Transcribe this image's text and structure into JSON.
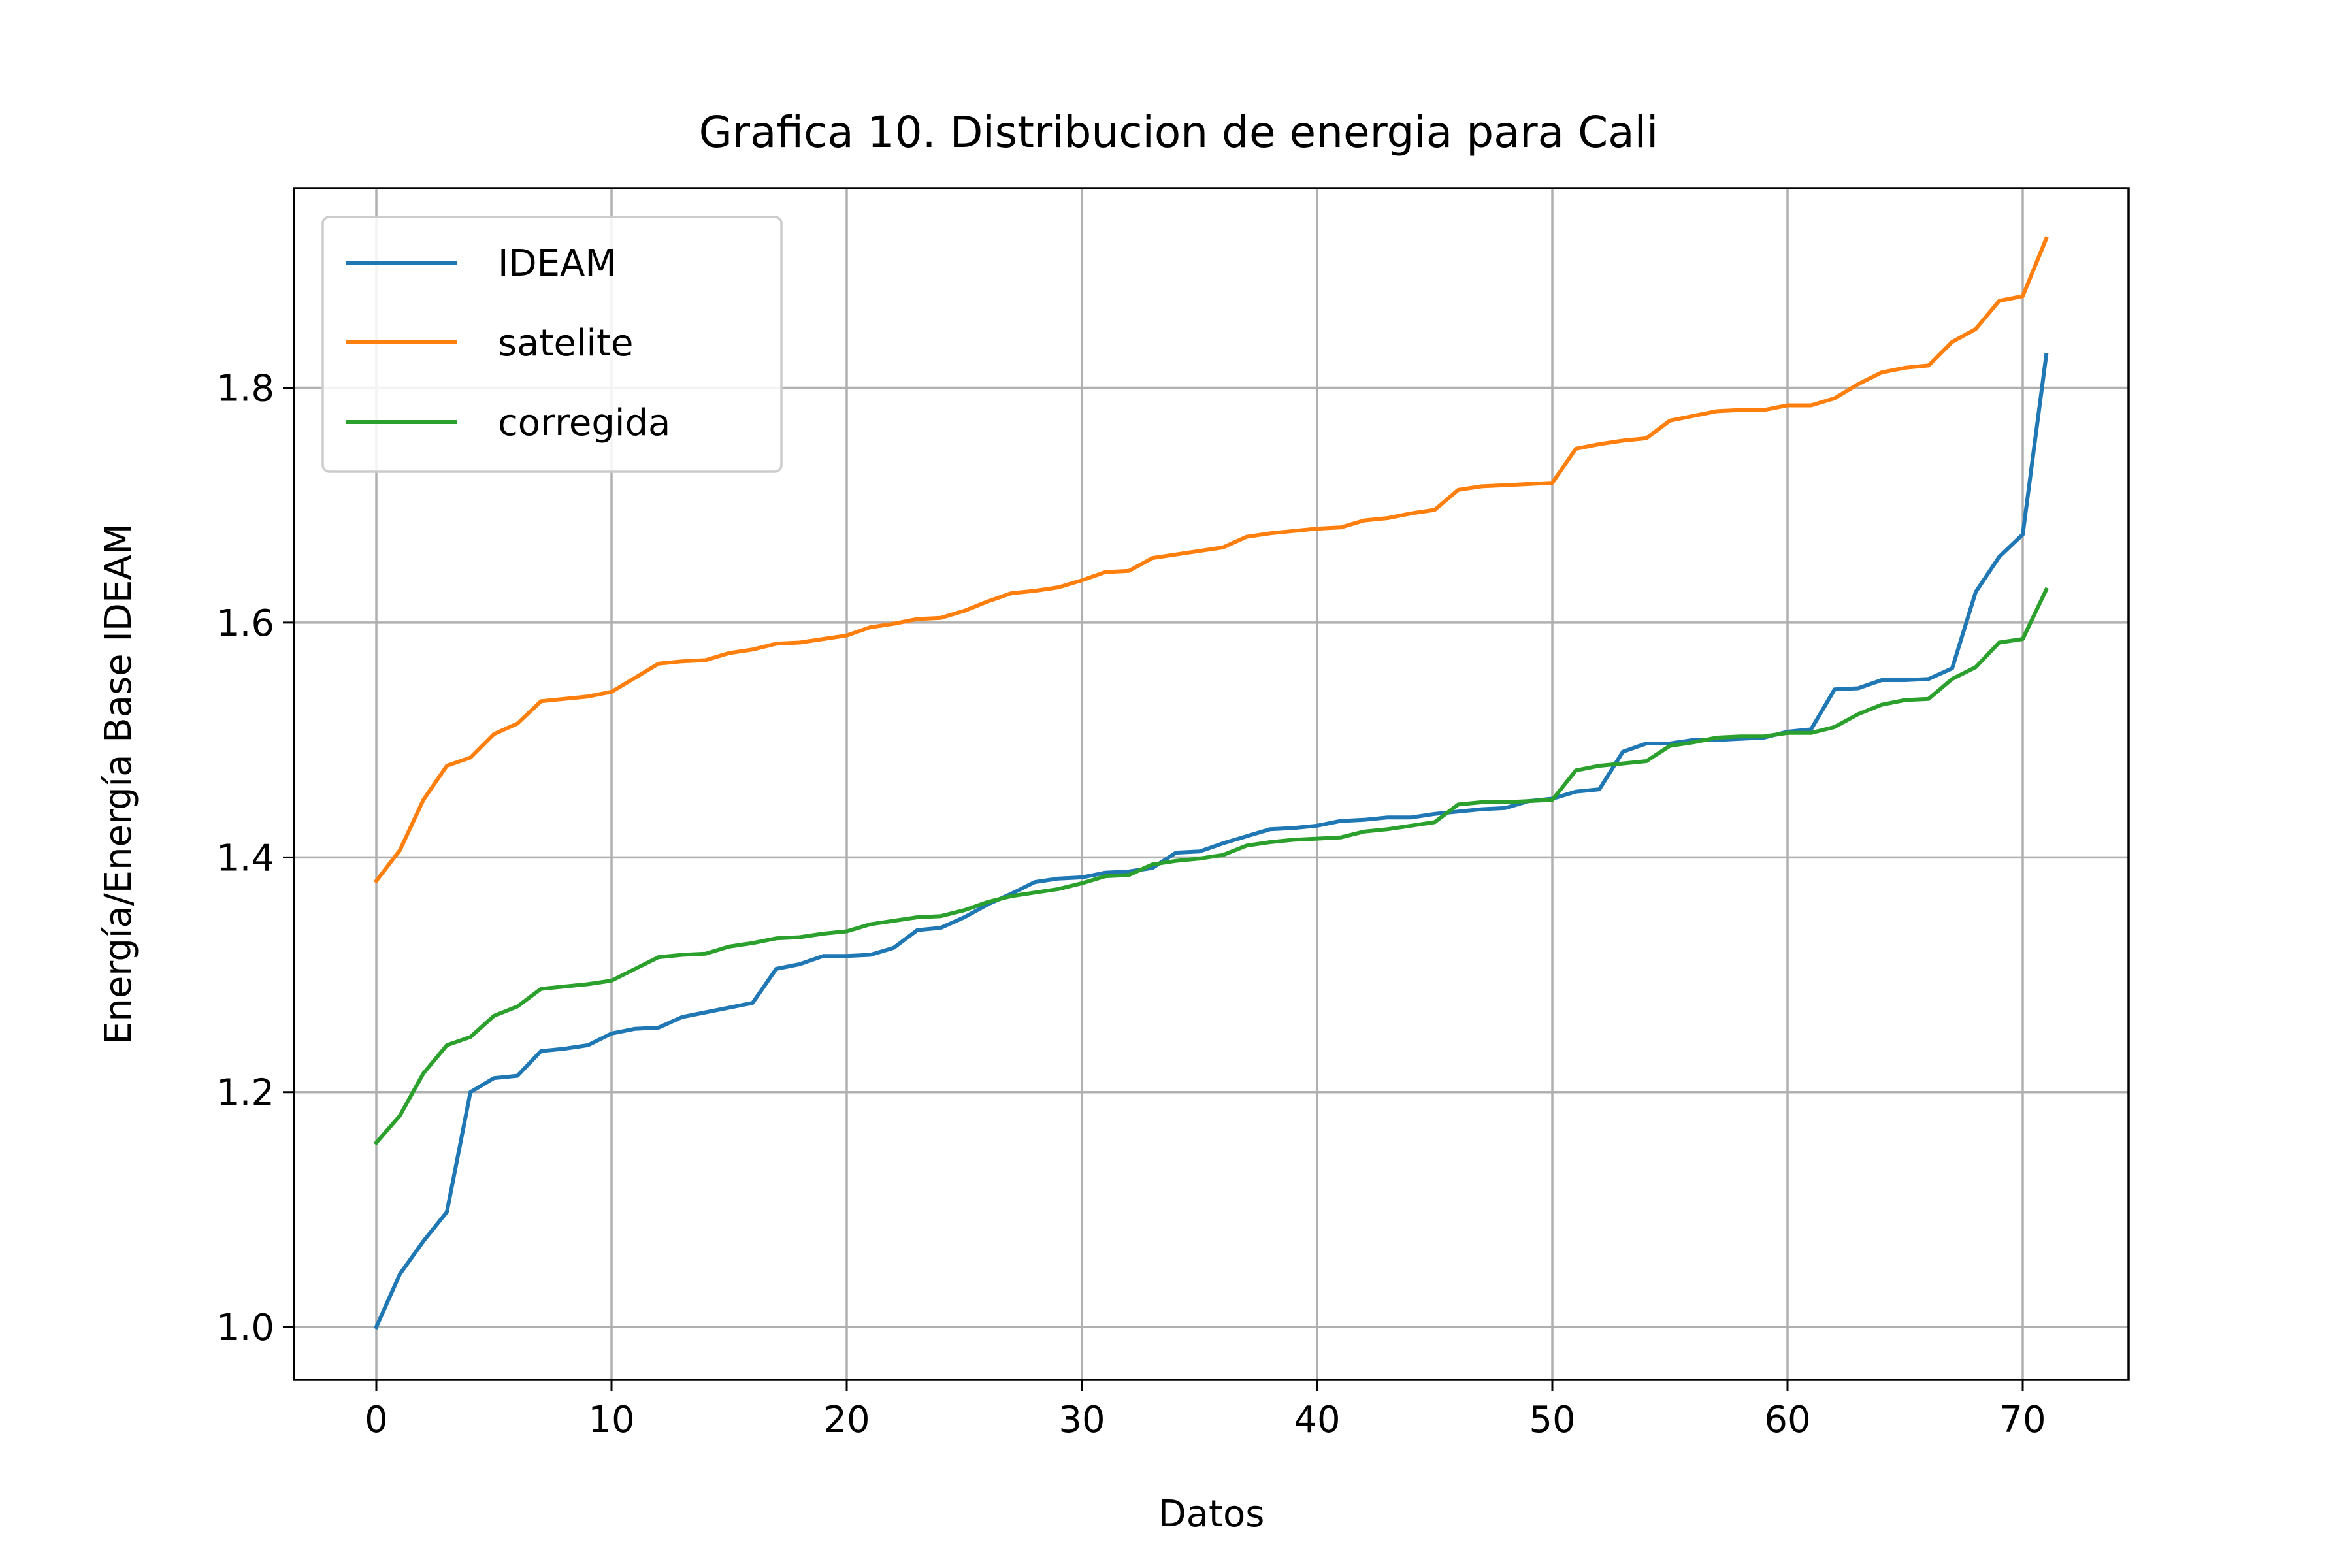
{
  "chart_data": {
    "type": "line",
    "title": "Grafica 10. Distribucion de energia para Cali",
    "xlabel": "Datos",
    "ylabel": "Energía/Energía Base IDEAM",
    "xlim": [
      -3.5,
      74.5
    ],
    "ylim": [
      0.955,
      1.97
    ],
    "xticks": [
      0,
      10,
      20,
      30,
      40,
      50,
      60,
      70
    ],
    "xtick_labels": [
      "0",
      "10",
      "20",
      "30",
      "40",
      "50",
      "60",
      "70"
    ],
    "yticks": [
      1.0,
      1.2,
      1.4,
      1.6,
      1.8
    ],
    "ytick_labels": [
      "1.0",
      "1.2",
      "1.4",
      "1.6",
      "1.8"
    ],
    "grid": true,
    "legend_position": "top-left",
    "series": [
      {
        "name": "IDEAM",
        "color": "#1f77b4",
        "values": [
          1.0,
          1.045,
          1.073,
          1.098,
          1.2,
          1.212,
          1.214,
          1.235,
          1.237,
          1.24,
          1.25,
          1.254,
          1.255,
          1.264,
          1.268,
          1.272,
          1.276,
          1.305,
          1.309,
          1.316,
          1.316,
          1.317,
          1.323,
          1.338,
          1.34,
          1.349,
          1.36,
          1.369,
          1.379,
          1.382,
          1.383,
          1.387,
          1.388,
          1.391,
          1.404,
          1.405,
          1.412,
          1.418,
          1.424,
          1.425,
          1.427,
          1.431,
          1.432,
          1.434,
          1.434,
          1.437,
          1.439,
          1.441,
          1.442,
          1.448,
          1.45,
          1.456,
          1.458,
          1.49,
          1.497,
          1.497,
          1.5,
          1.5,
          1.501,
          1.502,
          1.507,
          1.509,
          1.543,
          1.544,
          1.551,
          1.551,
          1.552,
          1.561,
          1.626,
          1.656,
          1.675,
          1.828
        ]
      },
      {
        "name": "satelite",
        "color": "#ff7f0e",
        "values": [
          1.38,
          1.406,
          1.449,
          1.478,
          1.485,
          1.505,
          1.514,
          1.533,
          1.535,
          1.537,
          1.541,
          1.553,
          1.565,
          1.567,
          1.568,
          1.574,
          1.577,
          1.582,
          1.583,
          1.586,
          1.589,
          1.596,
          1.599,
          1.603,
          1.604,
          1.61,
          1.618,
          1.625,
          1.627,
          1.63,
          1.636,
          1.643,
          1.644,
          1.655,
          1.658,
          1.661,
          1.664,
          1.673,
          1.676,
          1.678,
          1.68,
          1.681,
          1.687,
          1.689,
          1.693,
          1.696,
          1.713,
          1.716,
          1.717,
          1.718,
          1.719,
          1.748,
          1.752,
          1.755,
          1.757,
          1.772,
          1.776,
          1.78,
          1.781,
          1.781,
          1.785,
          1.785,
          1.791,
          1.803,
          1.813,
          1.817,
          1.819,
          1.839,
          1.85,
          1.874,
          1.878,
          1.927
        ]
      },
      {
        "name": "corregida",
        "color": "#2ca02c",
        "values": [
          1.157,
          1.18,
          1.216,
          1.24,
          1.247,
          1.265,
          1.273,
          1.288,
          1.29,
          1.292,
          1.295,
          1.305,
          1.315,
          1.317,
          1.318,
          1.324,
          1.327,
          1.331,
          1.332,
          1.335,
          1.337,
          1.343,
          1.346,
          1.349,
          1.35,
          1.355,
          1.362,
          1.367,
          1.37,
          1.373,
          1.378,
          1.384,
          1.385,
          1.394,
          1.397,
          1.399,
          1.402,
          1.41,
          1.413,
          1.415,
          1.416,
          1.417,
          1.422,
          1.424,
          1.427,
          1.43,
          1.445,
          1.447,
          1.447,
          1.448,
          1.449,
          1.474,
          1.478,
          1.48,
          1.482,
          1.495,
          1.498,
          1.502,
          1.503,
          1.503,
          1.506,
          1.506,
          1.511,
          1.522,
          1.53,
          1.534,
          1.535,
          1.552,
          1.562,
          1.583,
          1.586,
          1.628
        ]
      }
    ]
  }
}
